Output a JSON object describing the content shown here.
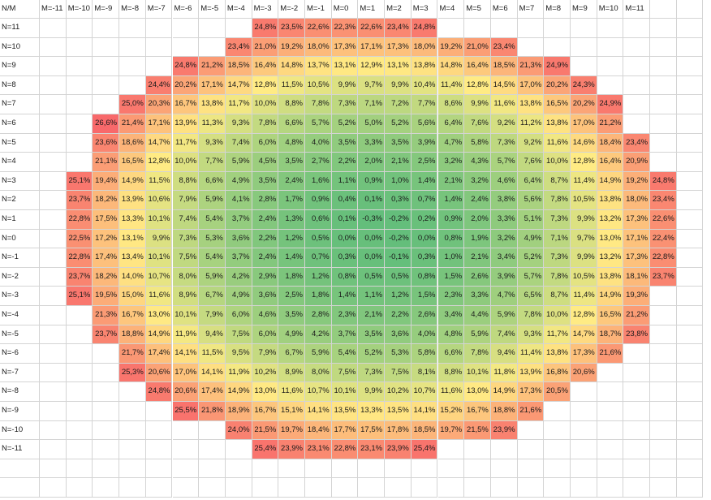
{
  "corner": "N/M",
  "columns": [
    "M=-11",
    "M=-10",
    "M=-9",
    "M=-8",
    "M=-7",
    "M=-6",
    "M=-5",
    "M=-4",
    "M=-3",
    "M=-2",
    "M=-1",
    "M=0",
    "M=1",
    "M=2",
    "M=3",
    "M=4",
    "M=5",
    "M=6",
    "M=7",
    "M=8",
    "M=9",
    "M=10",
    "M=11"
  ],
  "rows": [
    {
      "label": "N=11",
      "start": 8,
      "cells": [
        "24,8%",
        "23,5%",
        "22,6%",
        "22,3%",
        "22,6%",
        "23,4%",
        "24,8%"
      ]
    },
    {
      "label": "N=10",
      "start": 7,
      "cells": [
        "23,4%",
        "21,0%",
        "19,2%",
        "18,0%",
        "17,3%",
        "17,1%",
        "17,3%",
        "18,0%",
        "19,2%",
        "21,0%",
        "23,4%"
      ]
    },
    {
      "label": "N=9",
      "start": 5,
      "cells": [
        "24,8%",
        "21,2%",
        "18,5%",
        "16,4%",
        "14,8%",
        "13,7%",
        "13,1%",
        "12,9%",
        "13,1%",
        "13,8%",
        "14,8%",
        "16,4%",
        "18,5%",
        "21,3%",
        "24,9%"
      ]
    },
    {
      "label": "N=8",
      "start": 4,
      "cells": [
        "24,4%",
        "20,2%",
        "17,1%",
        "14,7%",
        "12,8%",
        "11,5%",
        "10,5%",
        "9,9%",
        "9,7%",
        "9,9%",
        "10,4%",
        "11,4%",
        "12,8%",
        "14,5%",
        "17,0%",
        "20,2%",
        "24,3%"
      ]
    },
    {
      "label": "N=7",
      "start": 3,
      "cells": [
        "25,0%",
        "20,3%",
        "16,7%",
        "13,8%",
        "11,7%",
        "10,0%",
        "8,8%",
        "7,8%",
        "7,3%",
        "7,1%",
        "7,2%",
        "7,7%",
        "8,6%",
        "9,9%",
        "11,6%",
        "13,8%",
        "16,5%",
        "20,2%",
        "24,9%"
      ]
    },
    {
      "label": "N=6",
      "start": 2,
      "cells": [
        "26,6%",
        "21,4%",
        "17,1%",
        "13,9%",
        "11,3%",
        "9,3%",
        "7,8%",
        "6,6%",
        "5,7%",
        "5,2%",
        "5,0%",
        "5,2%",
        "5,6%",
        "6,4%",
        "7,6%",
        "9,2%",
        "11,2%",
        "13,8%",
        "17,0%",
        "21,2%"
      ]
    },
    {
      "label": "N=5",
      "start": 2,
      "cells": [
        "23,6%",
        "18,6%",
        "14,7%",
        "11,7%",
        "9,3%",
        "7,4%",
        "6,0%",
        "4,8%",
        "4,0%",
        "3,5%",
        "3,3%",
        "3,5%",
        "3,9%",
        "4,7%",
        "5,8%",
        "7,3%",
        "9,2%",
        "11,6%",
        "14,6%",
        "18,4%",
        "23,4%"
      ]
    },
    {
      "label": "N=4",
      "start": 2,
      "cells": [
        "21,1%",
        "16,5%",
        "12,8%",
        "10,0%",
        "7,7%",
        "5,9%",
        "4,5%",
        "3,5%",
        "2,7%",
        "2,2%",
        "2,0%",
        "2,1%",
        "2,5%",
        "3,2%",
        "4,3%",
        "5,7%",
        "7,6%",
        "10,0%",
        "12,8%",
        "16,4%",
        "20,9%"
      ]
    },
    {
      "label": "N=3",
      "start": 1,
      "cells": [
        "25,1%",
        "19,4%",
        "14,9%",
        "11,5%",
        "8,8%",
        "6,6%",
        "4,9%",
        "3,5%",
        "2,4%",
        "1,6%",
        "1,1%",
        "0,9%",
        "1,0%",
        "1,4%",
        "2,1%",
        "3,2%",
        "4,6%",
        "6,4%",
        "8,7%",
        "11,4%",
        "14,9%",
        "19,2%",
        "24,8%"
      ]
    },
    {
      "label": "N=2",
      "start": 1,
      "cells": [
        "23,7%",
        "18,2%",
        "13,9%",
        "10,6%",
        "7,9%",
        "5,9%",
        "4,1%",
        "2,8%",
        "1,7%",
        "0,9%",
        "0,4%",
        "0,1%",
        "0,3%",
        "0,7%",
        "1,4%",
        "2,4%",
        "3,8%",
        "5,6%",
        "7,8%",
        "10,5%",
        "13,8%",
        "18,0%",
        "23,4%"
      ]
    },
    {
      "label": "N=1",
      "start": 1,
      "cells": [
        "22,8%",
        "17,5%",
        "13,3%",
        "10,1%",
        "7,4%",
        "5,4%",
        "3,7%",
        "2,4%",
        "1,3%",
        "0,6%",
        "0,1%",
        "-0,3%",
        "-0,2%",
        "0,2%",
        "0,9%",
        "2,0%",
        "3,3%",
        "5,1%",
        "7,3%",
        "9,9%",
        "13,2%",
        "17,3%",
        "22,6%"
      ]
    },
    {
      "label": "N=0",
      "start": 1,
      "cells": [
        "22,5%",
        "17,2%",
        "13,1%",
        "9,9%",
        "7,3%",
        "5,3%",
        "3,6%",
        "2,2%",
        "1,2%",
        "0,5%",
        "0,0%",
        "0,0%",
        "-0,2%",
        "0,0%",
        "0,8%",
        "1,9%",
        "3,2%",
        "4,9%",
        "7,1%",
        "9,7%",
        "13,0%",
        "17,1%",
        "22,4%"
      ]
    },
    {
      "label": "N=-1",
      "start": 1,
      "cells": [
        "22,8%",
        "17,4%",
        "13,4%",
        "10,1%",
        "7,5%",
        "5,4%",
        "3,7%",
        "2,4%",
        "1,4%",
        "0,7%",
        "0,3%",
        "0,0%",
        "-0,1%",
        "0,3%",
        "1,0%",
        "2,1%",
        "3,4%",
        "5,2%",
        "7,3%",
        "9,9%",
        "13,2%",
        "17,3%",
        "22,8%"
      ]
    },
    {
      "label": "N=-2",
      "start": 1,
      "cells": [
        "23,7%",
        "18,2%",
        "14,0%",
        "10,7%",
        "8,0%",
        "5,9%",
        "4,2%",
        "2,9%",
        "1,8%",
        "1,2%",
        "0,8%",
        "0,5%",
        "0,5%",
        "0,8%",
        "1,5%",
        "2,6%",
        "3,9%",
        "5,7%",
        "7,8%",
        "10,5%",
        "13,8%",
        "18,1%",
        "23,7%"
      ]
    },
    {
      "label": "N=-3",
      "start": 1,
      "cells": [
        "25,1%",
        "19,5%",
        "15,0%",
        "11,6%",
        "8,9%",
        "6,7%",
        "4,9%",
        "3,6%",
        "2,5%",
        "1,8%",
        "1,4%",
        "1,1%",
        "1,2%",
        "1,5%",
        "2,3%",
        "3,3%",
        "4,7%",
        "6,5%",
        "8,7%",
        "11,4%",
        "14,9%",
        "19,3%"
      ]
    },
    {
      "label": "N=-4",
      "start": 2,
      "cells": [
        "21,3%",
        "16,7%",
        "13,0%",
        "10,1%",
        "7,9%",
        "6,0%",
        "4,6%",
        "3,5%",
        "2,8%",
        "2,3%",
        "2,1%",
        "2,2%",
        "2,6%",
        "3,4%",
        "4,4%",
        "5,9%",
        "7,8%",
        "10,0%",
        "12,8%",
        "16,5%",
        "21,2%"
      ]
    },
    {
      "label": "N=-5",
      "start": 2,
      "cells": [
        "23,7%",
        "18,8%",
        "14,9%",
        "11,9%",
        "9,4%",
        "7,5%",
        "6,0%",
        "4,9%",
        "4,2%",
        "3,7%",
        "3,5%",
        "3,6%",
        "4,0%",
        "4,8%",
        "5,9%",
        "7,4%",
        "9,3%",
        "11,7%",
        "14,7%",
        "18,7%",
        "23,8%"
      ]
    },
    {
      "label": "N=-6",
      "start": 3,
      "cells": [
        "21,7%",
        "17,4%",
        "14,1%",
        "11,5%",
        "9,5%",
        "7,9%",
        "6,7%",
        "5,9%",
        "5,4%",
        "5,2%",
        "5,3%",
        "5,8%",
        "6,6%",
        "7,8%",
        "9,4%",
        "11,4%",
        "13,8%",
        "17,3%",
        "21,6%"
      ]
    },
    {
      "label": "N=-7",
      "start": 3,
      "cells": [
        "25,3%",
        "20,6%",
        "17,0%",
        "14,1%",
        "11,9%",
        "10,2%",
        "8,9%",
        "8,0%",
        "7,5%",
        "7,3%",
        "7,5%",
        "8,1%",
        "8,8%",
        "10,1%",
        "11,8%",
        "13,9%",
        "16,8%",
        "20,6%"
      ]
    },
    {
      "label": "N=-8",
      "start": 4,
      "cells": [
        "24,8%",
        "20,6%",
        "17,4%",
        "14,9%",
        "13,0%",
        "11,6%",
        "10,7%",
        "10,1%",
        "9,9%",
        "10,2%",
        "10,7%",
        "11,6%",
        "13,0%",
        "14,9%",
        "17,3%",
        "20,5%"
      ]
    },
    {
      "label": "N=-9",
      "start": 5,
      "cells": [
        "25,5%",
        "21,8%",
        "18,9%",
        "16,7%",
        "15,1%",
        "14,1%",
        "13,5%",
        "13,3%",
        "13,5%",
        "14,1%",
        "15,2%",
        "16,7%",
        "18,8%",
        "21,6%"
      ]
    },
    {
      "label": "N=-10",
      "start": 7,
      "cells": [
        "24,0%",
        "21,5%",
        "19,7%",
        "18,4%",
        "17,7%",
        "17,5%",
        "17,8%",
        "18,5%",
        "19,7%",
        "21,5%",
        "23,9%"
      ]
    },
    {
      "label": "N=-11",
      "start": 8,
      "cells": [
        "25,4%",
        "23,9%",
        "23,1%",
        "22,8%",
        "23,1%",
        "23,9%",
        "25,4%"
      ]
    }
  ],
  "colors": {
    "min": "#63be7b",
    "mid": "#ffeb84",
    "max": "#f8696b",
    "grid": "#d4d4d4"
  },
  "scale": {
    "min": -0.3,
    "mid": 12.8,
    "max": 26.6
  }
}
